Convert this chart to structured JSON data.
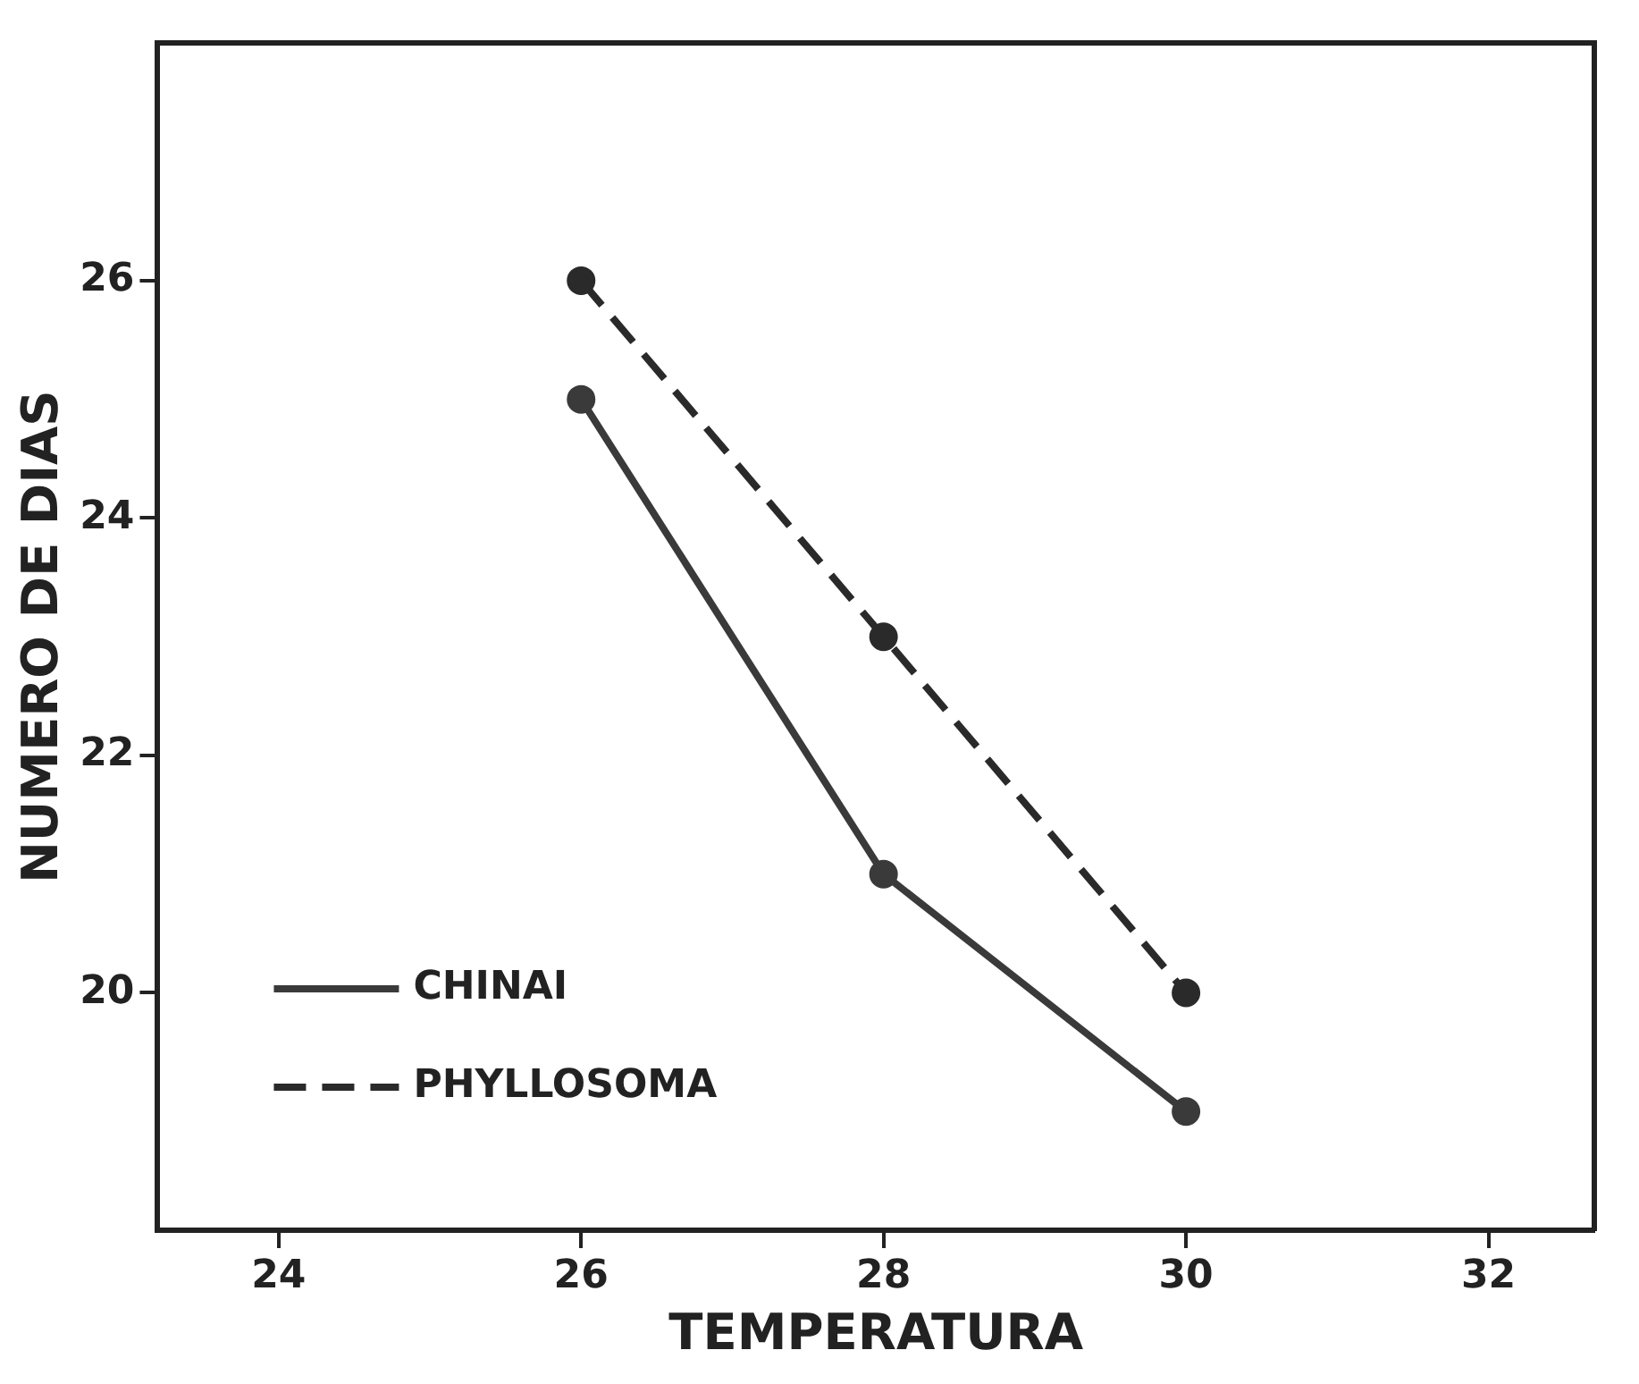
{
  "chart_data": {
    "type": "line",
    "xlabel": "TEMPERATURA",
    "ylabel": "NUMERO DE DIAS",
    "x": [
      26,
      28,
      30
    ],
    "series": [
      {
        "name": "CHINAI",
        "color": "#3a3a3a",
        "values": [
          25,
          21,
          19
        ],
        "line_style": "solid",
        "marker": "circle"
      },
      {
        "name": "PHYLLOSOMA",
        "color": "#2a2a2a",
        "values": [
          26,
          23,
          20
        ],
        "line_style": "dashed",
        "marker": "circle"
      }
    ],
    "xlim": [
      23.2,
      32.7
    ],
    "xticks": [
      24,
      26,
      28,
      30,
      32
    ],
    "ylim": [
      18,
      28
    ],
    "yticks": [
      20,
      22,
      24,
      26
    ],
    "grid": false,
    "legend": "bottom left"
  }
}
